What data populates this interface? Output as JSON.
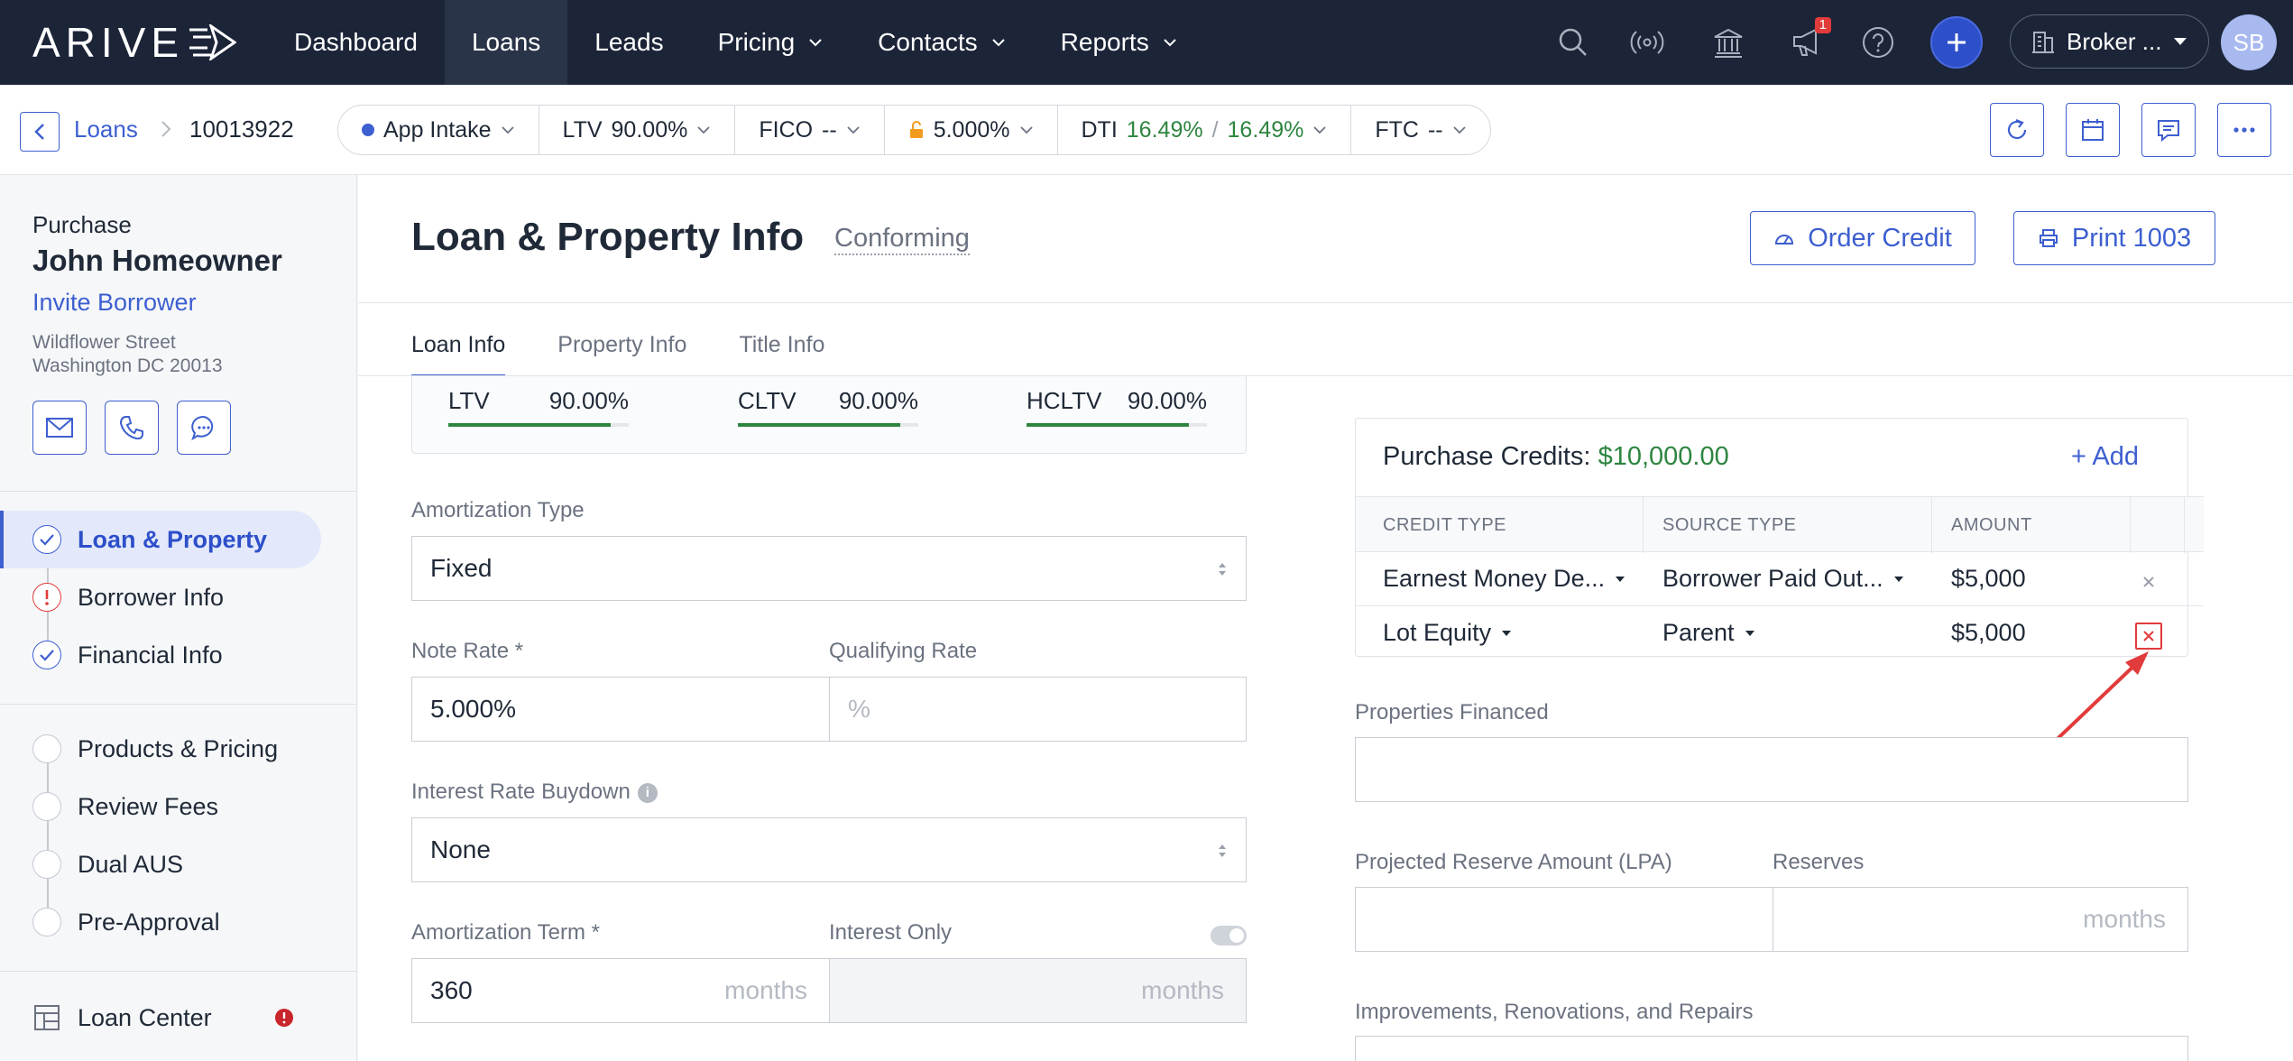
{
  "topnav": {
    "logo": "ARIVE",
    "items": [
      {
        "label": "Dashboard"
      },
      {
        "label": "Loans"
      },
      {
        "label": "Leads"
      },
      {
        "label": "Pricing"
      },
      {
        "label": "Contacts"
      },
      {
        "label": "Reports"
      }
    ],
    "notification_count": "1",
    "broker_label": "Broker ...",
    "avatar_initials": "SB"
  },
  "subbar": {
    "crumb_loans": "Loans",
    "loan_id": "10013922",
    "pills": {
      "stage": "App Intake",
      "ltv_label": "LTV",
      "ltv_value": "90.00%",
      "fico_label": "FICO",
      "fico_value": "--",
      "rate_value": "5.000%",
      "dti_label": "DTI",
      "dti_front": "16.49%",
      "dti_sep": "/",
      "dti_back": "16.49%",
      "ftc_label": "FTC",
      "ftc_value": "--"
    }
  },
  "sidebar": {
    "purpose": "Purchase",
    "borrower_name": "John Homeowner",
    "invite_label": "Invite Borrower",
    "address_line1": "Wildflower Street",
    "address_line2": "Washington DC 20013",
    "steps_group1": [
      {
        "label": "Loan & Property",
        "status": "complete",
        "active": true
      },
      {
        "label": "Borrower Info",
        "status": "error"
      },
      {
        "label": "Financial Info",
        "status": "complete"
      }
    ],
    "steps_group2": [
      {
        "label": "Products & Pricing"
      },
      {
        "label": "Review Fees"
      },
      {
        "label": "Dual AUS"
      },
      {
        "label": "Pre-Approval"
      }
    ],
    "loan_center_label": "Loan Center"
  },
  "main": {
    "title": "Loan & Property Info",
    "loan_type": "Conforming",
    "order_credit_label": "Order Credit",
    "print_label": "Print 1003",
    "tabs": [
      "Loan Info",
      "Property Info",
      "Title Info"
    ],
    "ratios": [
      {
        "label": "LTV",
        "value": "90.00%",
        "fill": 0.9
      },
      {
        "label": "CLTV",
        "value": "90.00%",
        "fill": 0.9
      },
      {
        "label": "HCLTV",
        "value": "90.00%",
        "fill": 0.9
      }
    ],
    "amortization_type_label": "Amortization Type",
    "amortization_type_value": "Fixed",
    "note_rate_label": "Note Rate *",
    "note_rate_value": "5.000%",
    "qualifying_rate_label": "Qualifying Rate",
    "qualifying_rate_placeholder": "%",
    "buydown_label": "Interest Rate Buydown",
    "buydown_value": "None",
    "amort_term_label": "Amortization Term *",
    "amort_term_value": "360",
    "months_suffix": "months",
    "interest_only_label": "Interest Only"
  },
  "credits": {
    "title": "Purchase Credits:",
    "total": "$10,000.00",
    "add_label": "+ Add",
    "headers": [
      "CREDIT TYPE",
      "SOURCE TYPE",
      "AMOUNT"
    ],
    "rows": [
      {
        "credit_type": "Earnest Money De...",
        "source_type": "Borrower Paid Out...",
        "amount": "$5,000"
      },
      {
        "credit_type": "Lot Equity",
        "source_type": "Parent",
        "amount": "$5,000"
      }
    ]
  },
  "right_fields": {
    "properties_financed_label": "Properties Financed",
    "reserve_amount_label": "Projected Reserve Amount (LPA)",
    "reserves_label": "Reserves",
    "reserves_suffix": "months",
    "improvements_label": "Improvements, Renovations, and Repairs"
  },
  "colors": {
    "nav_bg": "#1c2538",
    "accent": "#3d5fd0",
    "green": "#2e8540",
    "error": "#e23b3b",
    "annotation_arrow": "#e23b3b"
  }
}
